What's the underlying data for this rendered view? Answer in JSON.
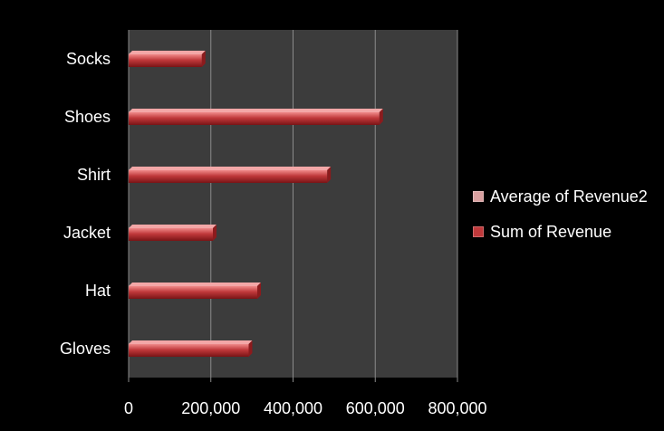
{
  "chart_data": {
    "type": "bar",
    "orientation": "horizontal",
    "categories": [
      "Gloves",
      "Hat",
      "Jacket",
      "Shirt",
      "Shoes",
      "Socks"
    ],
    "series": [
      {
        "name": "Average of Revenue2",
        "values": [
          0,
          0,
          0,
          0,
          0,
          0
        ],
        "color": "#d9a0a0"
      },
      {
        "name": "Sum of Revenue",
        "values": [
          292000,
          313000,
          205000,
          483000,
          610000,
          178000
        ],
        "color": "#c0393b"
      }
    ],
    "xlim": [
      0,
      800000
    ],
    "xticks": [
      "0",
      "200,000",
      "400,000",
      "600,000",
      "800,000"
    ],
    "xtick_values": [
      0,
      200000,
      400000,
      600000,
      800000
    ],
    "grid": true,
    "legend_position": "right",
    "plot_background": "#3c3c3c",
    "page_background": "#000000"
  }
}
